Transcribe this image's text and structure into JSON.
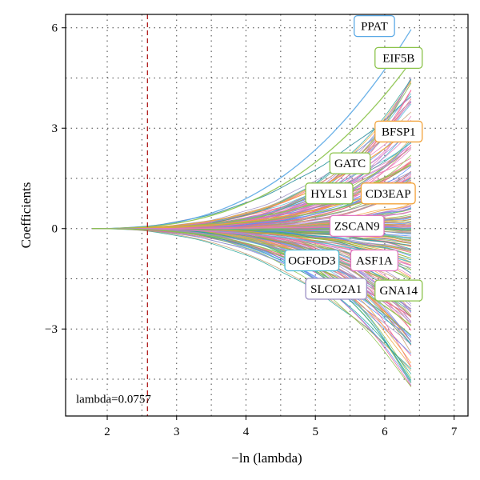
{
  "chart_data": {
    "type": "line",
    "title": "",
    "xlabel": "−ln (lambda)",
    "ylabel": "Coefficients",
    "xlim": [
      1.4,
      7.2
    ],
    "ylim": [
      -5.6,
      6.4
    ],
    "xticks": [
      2,
      3,
      4,
      5,
      6,
      7
    ],
    "yticks": [
      -3,
      0,
      3,
      6
    ],
    "y_tick_labels": [
      "−3",
      "0",
      "3",
      "6"
    ],
    "grid": true,
    "grid_style": "dotted",
    "selected_lambda": {
      "x": 2.58,
      "label": "lambda=0.0757",
      "color": "#b22222"
    },
    "path_colors": [
      "#5b8ff9",
      "#e377c2",
      "#8bc34a",
      "#f2a23a",
      "#9b8ec4",
      "#4dbbd5",
      "#f06292",
      "#7cb342",
      "#c49c6b",
      "#a77fd6",
      "#e57373",
      "#26a69a"
    ],
    "series": [
      {
        "label": "PPAT",
        "end_x": 6.38,
        "end_y": 5.95,
        "color": "#5aa9e6"
      },
      {
        "label": "EIF5B",
        "end_x": 6.38,
        "end_y": 5.0,
        "color": "#8bc34a"
      },
      {
        "label": "BFSP1",
        "end_x": 6.38,
        "end_y": 3.0,
        "color": "#f2a23a"
      },
      {
        "label": "GATC",
        "end_x": 6.38,
        "end_y": 1.9,
        "color": "#8bc34a"
      },
      {
        "label": "HYLS1",
        "end_x": 6.38,
        "end_y": 1.2,
        "color": "#8bc34a"
      },
      {
        "label": "CD3EAP",
        "end_x": 6.38,
        "end_y": 1.4,
        "color": "#f2a23a"
      },
      {
        "label": "ZSCAN9",
        "end_x": 6.38,
        "end_y": 0.1,
        "color": "#e377c2"
      },
      {
        "label": "OGFOD3",
        "end_x": 6.38,
        "end_y": -1.0,
        "color": "#4dbbd5"
      },
      {
        "label": "ASF1A",
        "end_x": 6.38,
        "end_y": -1.1,
        "color": "#e377c2"
      },
      {
        "label": "SLCO2A1",
        "end_x": 6.38,
        "end_y": -2.4,
        "color": "#9b8ec4"
      },
      {
        "label": "GNA14",
        "end_x": 6.38,
        "end_y": -2.9,
        "color": "#8bc34a"
      }
    ],
    "label_tags": [
      {
        "text": "PPAT",
        "x": 5.85,
        "y": 6.05,
        "color": "#5aa9e6"
      },
      {
        "text": "EIF5B",
        "x": 6.2,
        "y": 5.1,
        "color": "#8bc34a"
      },
      {
        "text": "BFSP1",
        "x": 6.2,
        "y": 2.9,
        "color": "#f2a23a"
      },
      {
        "text": "GATC",
        "x": 5.5,
        "y": 1.95,
        "color": "#8bc34a"
      },
      {
        "text": "HYLS1",
        "x": 5.2,
        "y": 1.05,
        "color": "#8bc34a"
      },
      {
        "text": "CD3EAP",
        "x": 6.05,
        "y": 1.05,
        "color": "#f2a23a"
      },
      {
        "text": "ZSCAN9",
        "x": 5.6,
        "y": 0.08,
        "color": "#e377c2"
      },
      {
        "text": "OGFOD3",
        "x": 4.95,
        "y": -0.95,
        "color": "#4dbbd5"
      },
      {
        "text": "ASF1A",
        "x": 5.85,
        "y": -0.95,
        "color": "#e377c2"
      },
      {
        "text": "SLCO2A1",
        "x": 5.3,
        "y": -1.8,
        "color": "#9b8ec4"
      },
      {
        "text": "GNA14",
        "x": 6.2,
        "y": -1.85,
        "color": "#8bc34a"
      }
    ]
  }
}
